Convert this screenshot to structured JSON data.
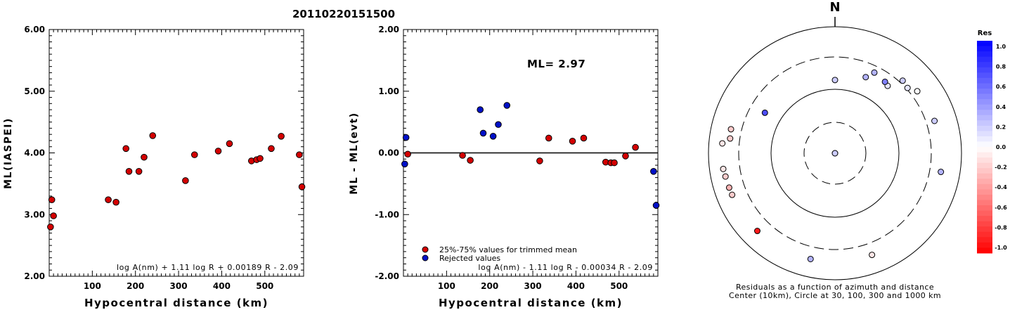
{
  "title": "20110220151500",
  "chart_data": [
    {
      "type": "scatter",
      "ylabel": "ML(IASPEI)",
      "xlabel": "Hypocentral distance (km)",
      "xlim": [
        0,
        590
      ],
      "ylim": [
        2.0,
        6.0
      ],
      "x_ticks": [
        100,
        200,
        300,
        400,
        500
      ],
      "y_ticks": [
        2.0,
        3.0,
        4.0,
        5.0,
        6.0
      ],
      "y_tick_labels": [
        "2.00",
        "3.00",
        "4.00",
        "5.00",
        "6.00"
      ],
      "formula": "log A(nm) + 1.11 log R + 0.00189 R - 2.09",
      "points": [
        {
          "x": 3,
          "y": 2.8
        },
        {
          "x": 6,
          "y": 3.24
        },
        {
          "x": 10,
          "y": 2.98
        },
        {
          "x": 137,
          "y": 3.24
        },
        {
          "x": 155,
          "y": 3.2
        },
        {
          "x": 178,
          "y": 4.07
        },
        {
          "x": 185,
          "y": 3.7
        },
        {
          "x": 208,
          "y": 3.7
        },
        {
          "x": 220,
          "y": 3.93
        },
        {
          "x": 240,
          "y": 4.28
        },
        {
          "x": 316,
          "y": 3.55
        },
        {
          "x": 337,
          "y": 3.97
        },
        {
          "x": 392,
          "y": 4.03
        },
        {
          "x": 418,
          "y": 4.15
        },
        {
          "x": 469,
          "y": 3.87
        },
        {
          "x": 481,
          "y": 3.89
        },
        {
          "x": 489,
          "y": 3.91
        },
        {
          "x": 515,
          "y": 4.07
        },
        {
          "x": 538,
          "y": 4.27
        },
        {
          "x": 580,
          "y": 3.97
        },
        {
          "x": 586,
          "y": 3.45
        }
      ]
    },
    {
      "type": "scatter",
      "ylabel": "ML - ML(evt)",
      "xlabel": "Hypocentral distance (km)",
      "xlim": [
        0,
        590
      ],
      "ylim": [
        -2.0,
        2.0
      ],
      "x_ticks": [
        100,
        200,
        300,
        400,
        500
      ],
      "y_ticks": [
        -2.0,
        -1.0,
        0.0,
        1.0,
        2.0
      ],
      "y_tick_labels": [
        "-2.00",
        "-1.00",
        "0.00",
        "1.00",
        "2.00"
      ],
      "annotation": "ML= 2.97",
      "formula": "log A(nm) - 1.11 log R - 0.00034 R - 2.09",
      "legend": [
        {
          "label": "25%-75% values for trimmed mean",
          "color": "#d40000"
        },
        {
          "label": "Rejected values",
          "color": "#0010c8"
        }
      ],
      "series": [
        {
          "name": "25%-75% values for trimmed mean",
          "points": [
            {
              "x": 10,
              "y": -0.02
            },
            {
              "x": 137,
              "y": -0.04
            },
            {
              "x": 155,
              "y": -0.12
            },
            {
              "x": 316,
              "y": -0.13
            },
            {
              "x": 337,
              "y": 0.24
            },
            {
              "x": 392,
              "y": 0.19
            },
            {
              "x": 418,
              "y": 0.24
            },
            {
              "x": 469,
              "y": -0.15
            },
            {
              "x": 481,
              "y": -0.16
            },
            {
              "x": 489,
              "y": -0.16
            },
            {
              "x": 515,
              "y": -0.05
            },
            {
              "x": 538,
              "y": 0.09
            }
          ]
        },
        {
          "name": "Rejected values",
          "points": [
            {
              "x": 3,
              "y": -0.18
            },
            {
              "x": 6,
              "y": 0.25
            },
            {
              "x": 178,
              "y": 0.7
            },
            {
              "x": 185,
              "y": 0.32
            },
            {
              "x": 208,
              "y": 0.27
            },
            {
              "x": 220,
              "y": 0.46
            },
            {
              "x": 240,
              "y": 0.77
            },
            {
              "x": 580,
              "y": -0.3
            },
            {
              "x": 586,
              "y": -0.85
            }
          ]
        }
      ]
    },
    {
      "type": "scatter",
      "north_label": "N",
      "caption_line1": "Residuals as a function of azimuth and distance",
      "caption_line2": "Center (10km), Circle at 30, 100, 300 and 1000 km",
      "colorbar_title": "Res",
      "colorbar_labels": [
        "1.0",
        "0.8",
        "0.6",
        "0.4",
        "0.2",
        "0.0",
        "-0.2",
        "-0.4",
        "-0.6",
        "-0.8",
        "-1.0"
      ],
      "points": [
        {
          "azimuth": 0,
          "dist_km": 10,
          "res": 0.0
        },
        {
          "azimuth": 180,
          "dist_km": 10,
          "res": 0.2
        },
        {
          "azimuth": 0,
          "dist_km": 137,
          "res": 0.2
        },
        {
          "azimuth": 300,
          "dist_km": 178,
          "res": 0.7
        },
        {
          "azimuth": 22,
          "dist_km": 185,
          "res": 0.3
        },
        {
          "azimuth": 38,
          "dist_km": 208,
          "res": 0.1
        },
        {
          "azimuth": 35,
          "dist_km": 220,
          "res": 0.5
        },
        {
          "azimuth": 26,
          "dist_km": 240,
          "res": 0.3
        },
        {
          "azimuth": 48,
          "dist_km": 316,
          "res": 0.1
        },
        {
          "azimuth": 43,
          "dist_km": 337,
          "res": 0.2
        },
        {
          "azimuth": 53,
          "dist_km": 392,
          "res": 0.0
        },
        {
          "azimuth": 72,
          "dist_km": 418,
          "res": 0.2
        },
        {
          "azimuth": 100,
          "dist_km": 469,
          "res": 0.3
        },
        {
          "azimuth": 160,
          "dist_km": 481,
          "res": -0.1
        },
        {
          "azimuth": 193,
          "dist_km": 489,
          "res": 0.3
        },
        {
          "azimuth": 225,
          "dist_km": 515,
          "res": -0.9
        },
        {
          "azimuth": 248,
          "dist_km": 538,
          "res": -0.2
        },
        {
          "azimuth": 262,
          "dist_km": 580,
          "res": -0.1
        },
        {
          "azimuth": 275,
          "dist_km": 586,
          "res": -0.1
        },
        {
          "azimuth": 258,
          "dist_km": 560,
          "res": -0.2
        },
        {
          "azimuth": 252,
          "dist_km": 545,
          "res": -0.3
        },
        {
          "azimuth": 278,
          "dist_km": 440,
          "res": -0.2
        },
        {
          "azimuth": 283,
          "dist_km": 455,
          "res": -0.2
        }
      ]
    }
  ]
}
